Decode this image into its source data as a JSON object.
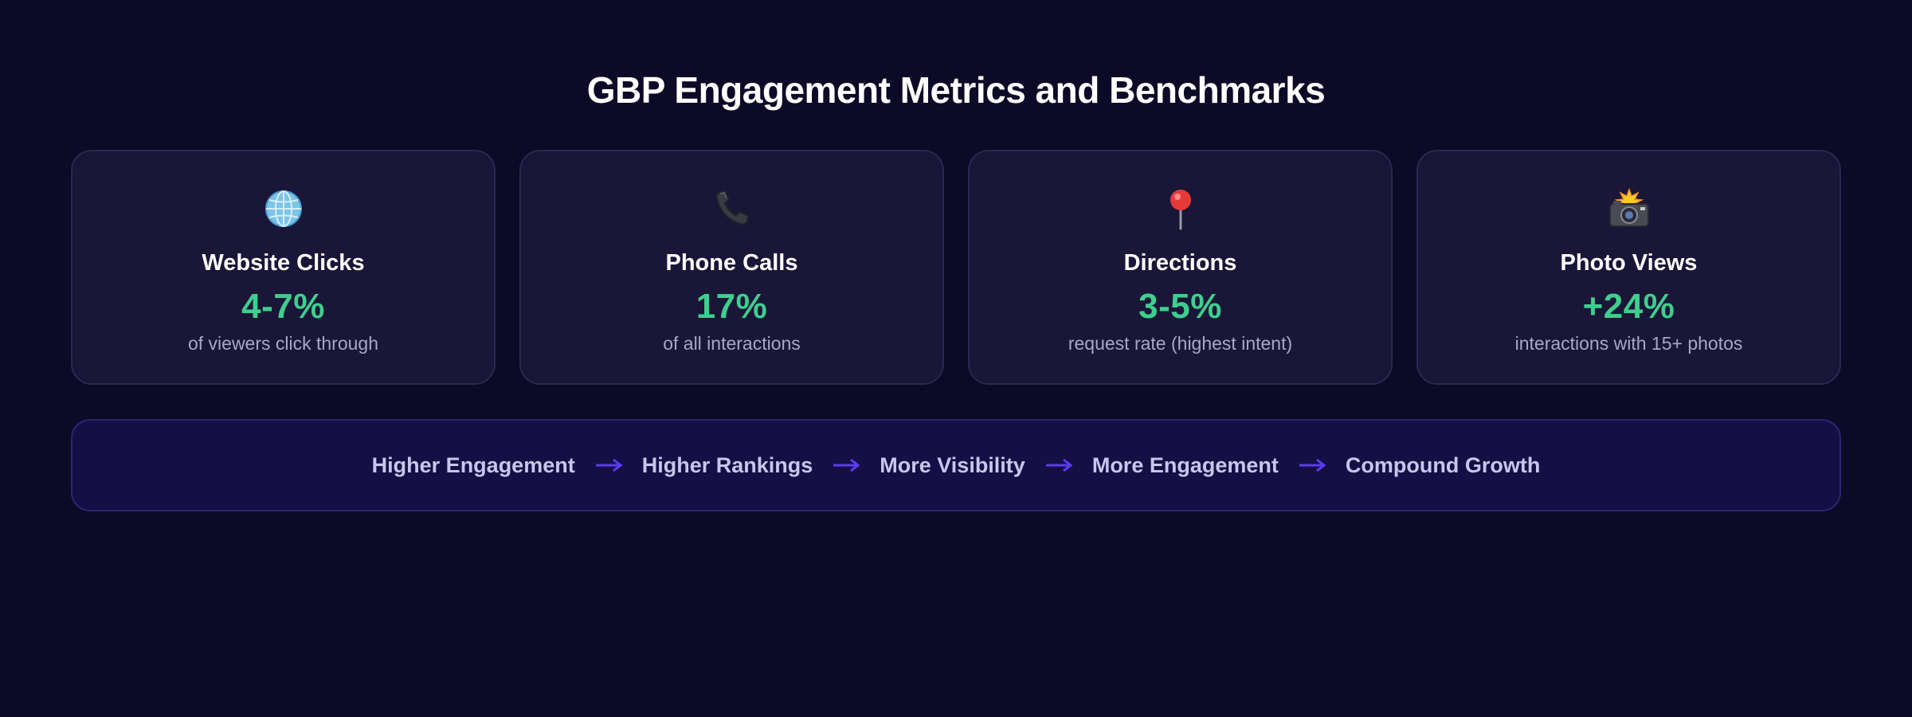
{
  "title": "GBP Engagement Metrics and Benchmarks",
  "colors": {
    "background": "#0d0a28",
    "card_background": "#1a1638",
    "accent_green": "#3ecf8e",
    "arrow": "#5b3df0",
    "flow_background": "#150f45"
  },
  "cards": [
    {
      "icon": "globe-icon",
      "title": "Website Clicks",
      "value": "4-7%",
      "description": "of viewers click through"
    },
    {
      "icon": "phone-icon",
      "title": "Phone Calls",
      "value": "17%",
      "description": "of all interactions"
    },
    {
      "icon": "pushpin-icon",
      "title": "Directions",
      "value": "3-5%",
      "description": "request rate (highest intent)"
    },
    {
      "icon": "camera-flash-icon",
      "title": "Photo Views",
      "value": "+24%",
      "description": "interactions with 15+ photos"
    }
  ],
  "flow": {
    "steps": [
      "Higher Engagement",
      "Higher Rankings",
      "More Visibility",
      "More Engagement",
      "Compound Growth"
    ],
    "arrow_icon": "arrow-right-icon"
  }
}
